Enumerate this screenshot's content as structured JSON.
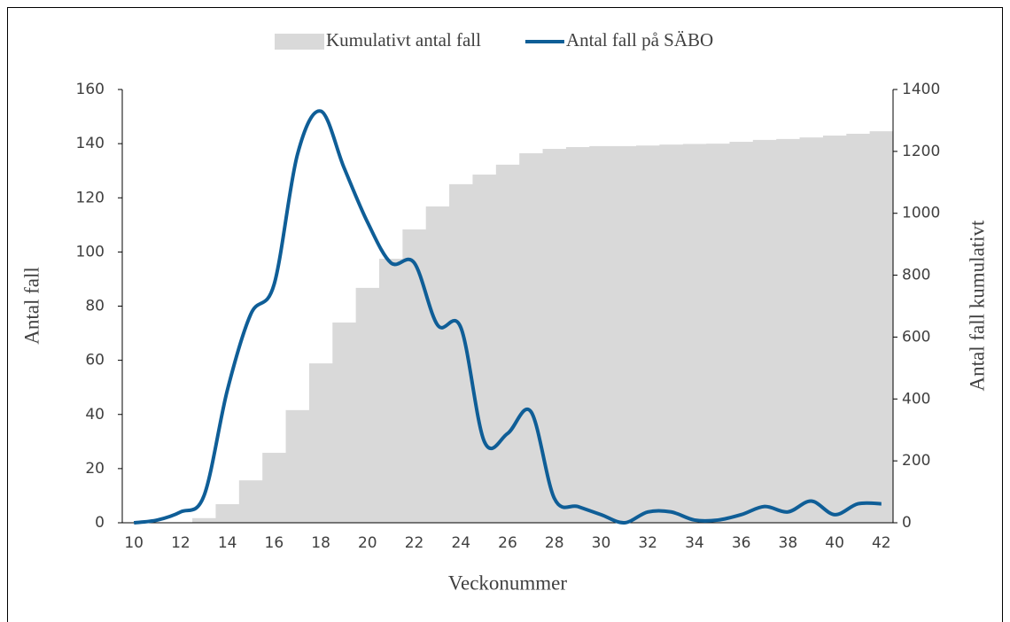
{
  "chart_data": {
    "type": "combo",
    "x_label": "Veckonummer",
    "y_label": "Antal fall",
    "y2_label": "Antal fall kumulativt",
    "categories": [
      10,
      null,
      12,
      null,
      14,
      null,
      16,
      null,
      18,
      null,
      20,
      null,
      22,
      null,
      24,
      null,
      26,
      null,
      28,
      null,
      30,
      null,
      32,
      null,
      34,
      null,
      36,
      null,
      38,
      null,
      40,
      null,
      42
    ],
    "series": [
      {
        "name": "Kumulativt antal fall",
        "type": "bar",
        "axis": "y2",
        "color": "#d9d9d9",
        "values": [
          0,
          0,
          0,
          15,
          60,
          137,
          226,
          364,
          515,
          647,
          759,
          853,
          948,
          1022,
          1094,
          1125,
          1157,
          1194,
          1208,
          1214,
          1217,
          1217,
          1219,
          1222,
          1224,
          1225,
          1231,
          1237,
          1240,
          1245,
          1251,
          1257,
          1265
        ]
      },
      {
        "name": "Antal fall på SÄBO",
        "type": "line",
        "color": "#0f5e97",
        "values": [
          0,
          1,
          4,
          10,
          49,
          77,
          88,
          136,
          152,
          131,
          111,
          96,
          96,
          73,
          72,
          30,
          33,
          41,
          9,
          6,
          3,
          0,
          4,
          4,
          1,
          1,
          3,
          6,
          4,
          8,
          3,
          7,
          7
        ]
      }
    ],
    "ylim": [
      0,
      160
    ],
    "yticks": [
      0,
      20,
      40,
      60,
      80,
      100,
      120,
      140,
      160
    ],
    "y2lim": [
      0,
      1400
    ],
    "y2ticks": [
      0,
      200,
      400,
      600,
      800,
      1000,
      1200,
      1400
    ],
    "legend": "top"
  }
}
